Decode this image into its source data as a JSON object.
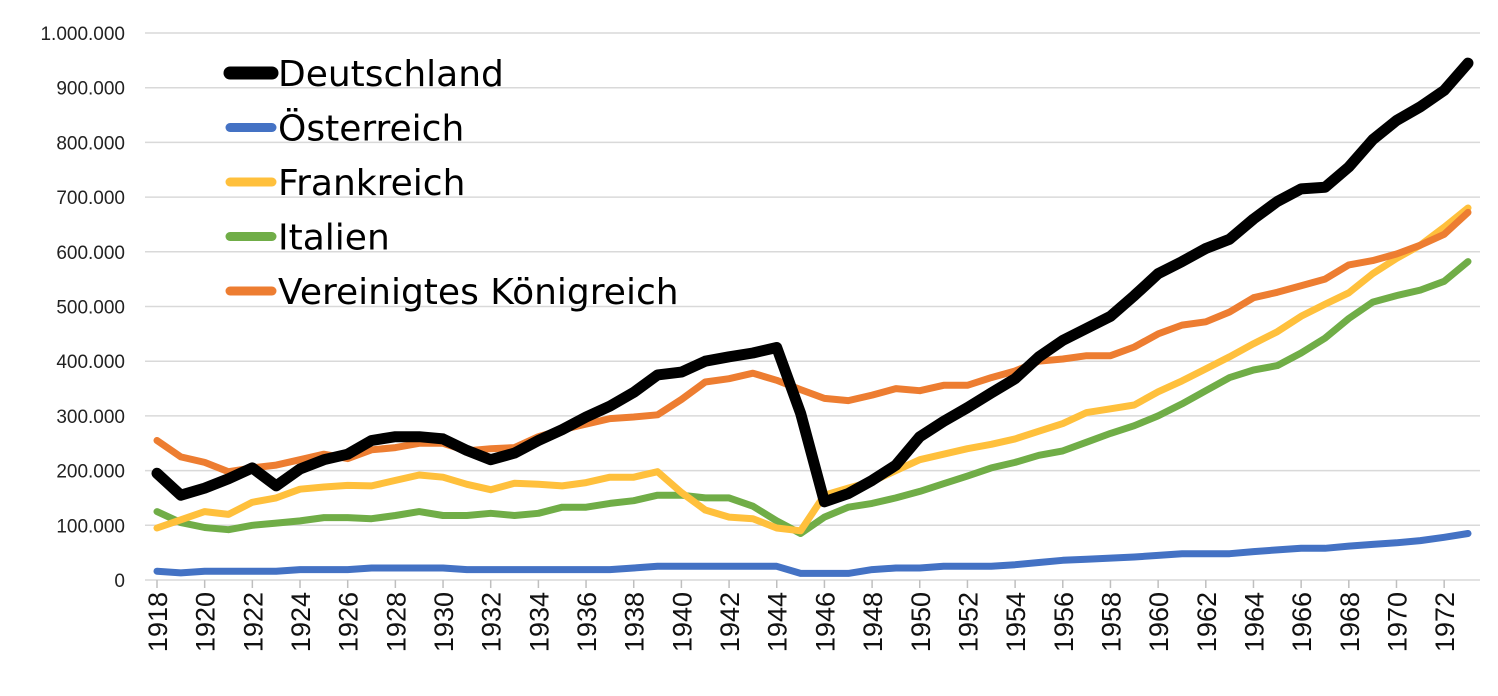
{
  "chart_data": {
    "type": "line",
    "title": "",
    "xlabel": "",
    "ylabel": "",
    "ylim": [
      0,
      1000000
    ],
    "y_ticks": [
      0,
      100000,
      200000,
      300000,
      400000,
      500000,
      600000,
      700000,
      800000,
      900000,
      1000000
    ],
    "y_tick_labels": [
      "0",
      "100.000",
      "200.000",
      "300.000",
      "400.000",
      "500.000",
      "600.000",
      "700.000",
      "800.000",
      "900.000",
      "1.000.000"
    ],
    "x_tick_labels": [
      "1918",
      "1920",
      "1922",
      "1924",
      "1926",
      "1928",
      "1930",
      "1932",
      "1934",
      "1936",
      "1938",
      "1940",
      "1942",
      "1944",
      "1946",
      "1948",
      "1950",
      "1952",
      "1954",
      "1956",
      "1958",
      "1960",
      "1962",
      "1964",
      "1966",
      "1968",
      "1970",
      "1972"
    ],
    "grid": "horizontal",
    "legend_position": "top-left",
    "x": [
      1918,
      1919,
      1920,
      1921,
      1922,
      1923,
      1924,
      1925,
      1926,
      1927,
      1928,
      1929,
      1930,
      1931,
      1932,
      1933,
      1934,
      1935,
      1936,
      1937,
      1938,
      1939,
      1940,
      1941,
      1942,
      1943,
      1944,
      1945,
      1946,
      1947,
      1948,
      1949,
      1950,
      1951,
      1952,
      1953,
      1954,
      1955,
      1956,
      1957,
      1958,
      1959,
      1960,
      1961,
      1962,
      1963,
      1964,
      1965,
      1966,
      1967,
      1968,
      1969,
      1970,
      1971,
      1972,
      1973
    ],
    "series": [
      {
        "name": "Deutschland",
        "color": "#000000",
        "values": [
          195000,
          155000,
          168000,
          185000,
          205000,
          172000,
          203000,
          220000,
          230000,
          255000,
          262000,
          262000,
          258000,
          237000,
          220000,
          232000,
          255000,
          275000,
          298000,
          318000,
          343000,
          375000,
          380000,
          400000,
          408000,
          415000,
          425000,
          305000,
          143000,
          158000,
          182000,
          210000,
          262000,
          290000,
          315000,
          342000,
          368000,
          408000,
          438000,
          460000,
          482000,
          520000,
          560000,
          582000,
          606000,
          623000,
          660000,
          692000,
          715000,
          718000,
          755000,
          805000,
          840000,
          865000,
          895000,
          945000
        ]
      },
      {
        "name": "Österreich",
        "color": "#4472c4",
        "values": [
          16000,
          13000,
          16000,
          16000,
          16000,
          16000,
          19000,
          19000,
          19000,
          22000,
          22000,
          22000,
          22000,
          19000,
          19000,
          19000,
          19000,
          19000,
          19000,
          19000,
          22000,
          25000,
          25000,
          25000,
          25000,
          25000,
          25000,
          12000,
          12000,
          12000,
          19000,
          22000,
          22000,
          25000,
          25000,
          25000,
          28000,
          32000,
          36000,
          38000,
          40000,
          42000,
          45000,
          48000,
          48000,
          48000,
          52000,
          55000,
          58000,
          58000,
          62000,
          65000,
          68000,
          72000,
          78000,
          85000
        ]
      },
      {
        "name": "Frankreich",
        "color": "#ffc03c",
        "values": [
          95000,
          110000,
          125000,
          120000,
          142000,
          150000,
          166000,
          170000,
          173000,
          172000,
          182000,
          192000,
          188000,
          175000,
          165000,
          177000,
          175000,
          172000,
          178000,
          188000,
          188000,
          198000,
          160000,
          128000,
          115000,
          112000,
          95000,
          90000,
          155000,
          168000,
          180000,
          200000,
          220000,
          230000,
          240000,
          248000,
          258000,
          272000,
          286000,
          306000,
          313000,
          320000,
          344000,
          364000,
          386000,
          408000,
          432000,
          454000,
          482000,
          504000,
          525000,
          560000,
          588000,
          612000,
          645000,
          680000
        ]
      },
      {
        "name": "Italien",
        "color": "#70ad47",
        "values": [
          125000,
          105000,
          96000,
          92000,
          100000,
          104000,
          108000,
          114000,
          114000,
          112000,
          118000,
          125000,
          118000,
          118000,
          122000,
          118000,
          122000,
          133000,
          133000,
          140000,
          145000,
          155000,
          155000,
          150000,
          150000,
          135000,
          108000,
          85000,
          115000,
          133000,
          140000,
          150000,
          162000,
          176000,
          190000,
          205000,
          215000,
          228000,
          236000,
          252000,
          268000,
          282000,
          300000,
          322000,
          346000,
          370000,
          384000,
          392000,
          415000,
          442000,
          478000,
          508000,
          520000,
          530000,
          546000,
          582000
        ]
      },
      {
        "name": "Vereinigtes Königreich",
        "color": "#ed7d31",
        "values": [
          255000,
          225000,
          215000,
          198000,
          205000,
          210000,
          220000,
          230000,
          222000,
          238000,
          242000,
          250000,
          250000,
          236000,
          240000,
          242000,
          262000,
          275000,
          285000,
          295000,
          298000,
          302000,
          330000,
          362000,
          368000,
          378000,
          365000,
          348000,
          332000,
          328000,
          338000,
          350000,
          346000,
          356000,
          356000,
          370000,
          382000,
          400000,
          404000,
          410000,
          410000,
          426000,
          450000,
          466000,
          472000,
          490000,
          516000,
          526000,
          538000,
          550000,
          576000,
          584000,
          596000,
          612000,
          632000,
          672000
        ]
      }
    ]
  }
}
